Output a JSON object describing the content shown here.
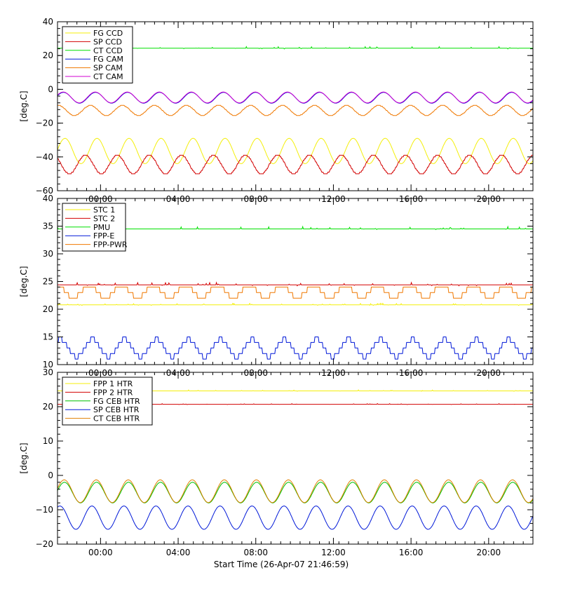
{
  "colors": {
    "yellow": "#f4ef0a",
    "red": "#d30000",
    "green": "#00e000",
    "blue": "#0018d8",
    "orange": "#f07800",
    "magenta": "#d000d0",
    "olive": "#b8a000",
    "frame": "#000000",
    "background": "#ffffff"
  },
  "x_axis": {
    "tick_labels": [
      "00:00",
      "04:00",
      "08:00",
      "12:00",
      "16:00",
      "20:00"
    ],
    "tick_hours": [
      2.2172,
      6.2172,
      10.2172,
      14.2172,
      18.2172,
      22.2172
    ],
    "range_hours": [
      0,
      24.5
    ],
    "minor_step_hours": 0.5,
    "label": "Start Time (26-Apr-07 21:46:59)"
  },
  "chart_data": [
    {
      "type": "line",
      "ylabel": "[deg.C]",
      "ylim": [
        -60,
        40
      ],
      "yticks": [
        40,
        20,
        0,
        -20,
        -40,
        -60
      ],
      "ytick_labels": [
        "40",
        "20",
        "0",
        "−20",
        "−40",
        "−60"
      ],
      "grid": false,
      "legend_position": "top-left",
      "time_labels": [
        "00:00",
        "04:00",
        "08:00",
        "12:00",
        "16:00",
        "20:00"
      ],
      "series": [
        {
          "name": "FG CCD",
          "color": "#f4ef0a",
          "kind": "sine",
          "mean": -36.5,
          "amplitude": 7.5,
          "period_hours": 1.65,
          "phase": 0.1,
          "step": 0.0
        },
        {
          "name": "SP CCD",
          "color": "#d30000",
          "kind": "sine",
          "mean": -44.5,
          "amplitude": 5.5,
          "period_hours": 1.65,
          "phase": 2.4,
          "step": 1.0
        },
        {
          "name": "CT CCD",
          "color": "#00e000",
          "kind": "flat",
          "level": 24.3,
          "noise": 0.7
        },
        {
          "name": "FG CAM",
          "color": "#0018d8",
          "kind": "sine",
          "mean": -5.0,
          "amplitude": 3.2,
          "period_hours": 1.65,
          "phase": 0.4,
          "step": 0.0
        },
        {
          "name": "SP CAM",
          "color": "#f07800",
          "kind": "sine",
          "mean": -12.5,
          "amplitude": 3.0,
          "period_hours": 1.65,
          "phase": 1.4,
          "step": 0.5
        },
        {
          "name": "CT CAM",
          "color": "#d000d0",
          "kind": "sine",
          "mean": -4.8,
          "amplitude": 3.2,
          "period_hours": 1.65,
          "phase": 0.45,
          "step": 0.0
        }
      ]
    },
    {
      "type": "line",
      "ylabel": "[deg.C]",
      "ylim": [
        10,
        40
      ],
      "yticks": [
        40,
        35,
        30,
        25,
        20,
        15,
        10
      ],
      "ytick_labels": [
        "40",
        "35",
        "30",
        "25",
        "20",
        "15",
        "10"
      ],
      "grid": false,
      "legend_position": "top-left",
      "time_labels": [
        "00:00",
        "04:00",
        "08:00",
        "12:00",
        "16:00",
        "20:00"
      ],
      "series": [
        {
          "name": "STC 1",
          "color": "#f4ef0a",
          "kind": "flat",
          "level": 20.8,
          "noise": 0.2
        },
        {
          "name": "STC 2",
          "color": "#d30000",
          "kind": "flat",
          "level": 24.4,
          "noise": 0.3
        },
        {
          "name": "PMU",
          "color": "#00e000",
          "kind": "flat",
          "level": 34.5,
          "noise": 0.3
        },
        {
          "name": "FPP-E",
          "color": "#0018d8",
          "kind": "sine",
          "mean": 13.0,
          "amplitude": 1.6,
          "period_hours": 1.65,
          "phase": 1.0,
          "step": 1.0
        },
        {
          "name": "FPP-PWR",
          "color": "#f07800",
          "kind": "sine",
          "mean": 23.2,
          "amplitude": 1.1,
          "period_hours": 1.65,
          "phase": 1.6,
          "step": 1.0
        }
      ]
    },
    {
      "type": "line",
      "ylabel": "[deg.C]",
      "ylim": [
        -20,
        30
      ],
      "yticks": [
        30,
        20,
        10,
        0,
        -10,
        -20
      ],
      "ytick_labels": [
        "30",
        "20",
        "10",
        "0",
        "−10",
        "−20"
      ],
      "grid": false,
      "legend_position": "top-left",
      "time_labels": [
        "00:00",
        "04:00",
        "08:00",
        "12:00",
        "16:00",
        "20:00"
      ],
      "series": [
        {
          "name": "FPP 1 HTR",
          "color": "#f4ef0a",
          "kind": "flat",
          "level": 24.6,
          "noise": 0.2
        },
        {
          "name": "FPP 2 HTR",
          "color": "#d30000",
          "kind": "flat",
          "level": 20.7,
          "noise": 0.15
        },
        {
          "name": "FG CEB HTR",
          "color": "#00c000",
          "kind": "sine",
          "mean": -5.0,
          "amplitude": 3.0,
          "period_hours": 1.65,
          "phase": 0.2,
          "step": 0.0
        },
        {
          "name": "SP CEB HTR",
          "color": "#0018d8",
          "kind": "sine",
          "mean": -12.3,
          "amplitude": 3.4,
          "period_hours": 1.65,
          "phase": 1.1,
          "step": 0.0
        },
        {
          "name": "CT CEB HTR",
          "color": "#e08000",
          "kind": "sine",
          "mean": -4.6,
          "amplitude": 3.3,
          "period_hours": 1.65,
          "phase": 0.25,
          "step": 0.0
        }
      ]
    }
  ]
}
